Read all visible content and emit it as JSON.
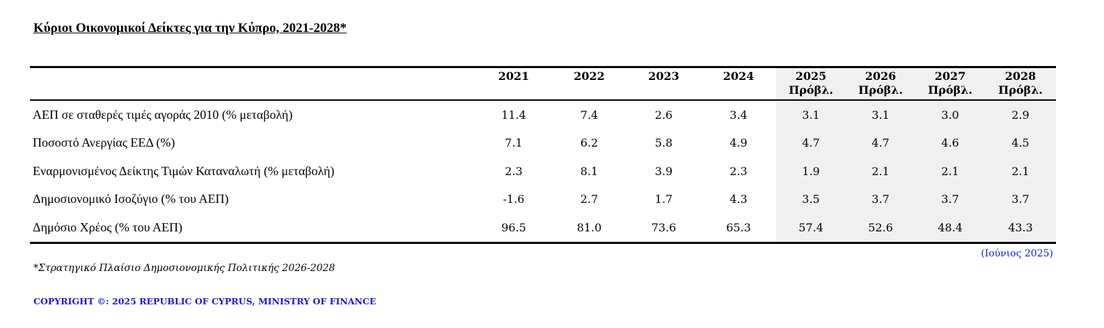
{
  "title": "Κύριοι Οικονομικοί Δείκτες για την Κύπρο, 2021-2028*",
  "columns": [
    {
      "year": "2021",
      "sub": ""
    },
    {
      "year": "2022",
      "sub": ""
    },
    {
      "year": "2023",
      "sub": ""
    },
    {
      "year": "2024",
      "sub": ""
    },
    {
      "year": "2025",
      "sub": "Πρόβλ."
    },
    {
      "year": "2026",
      "sub": "Πρόβλ."
    },
    {
      "year": "2027",
      "sub": "Πρόβλ."
    },
    {
      "year": "2028",
      "sub": "Πρόβλ."
    }
  ],
  "rows": [
    {
      "label": "ΑΕΠ σε σταθερές τιμές αγοράς 2010 (% μεταβολή)",
      "values": [
        "11.4",
        "7.4",
        "2.6",
        "3.4",
        "3.1",
        "3.1",
        "3.0",
        "2.9"
      ]
    },
    {
      "label": "Ποσοστό Ανεργίας ΕΕΔ (%)",
      "values": [
        "7.1",
        "6.2",
        "5.8",
        "4.9",
        "4.7",
        "4.7",
        "4.6",
        "4.5"
      ]
    },
    {
      "label": "Εναρμονισμένος Δείκτης Τιμών Καταναλωτή (% μεταβολή)",
      "values": [
        "2.3",
        "8.1",
        "3.9",
        "2.3",
        "1.9",
        "2.1",
        "2.1",
        "2.1"
      ]
    },
    {
      "label": "Δημοσιονομικό Ισοζύγιο (% του ΑΕΠ)",
      "values": [
        "-1.6",
        "2.7",
        "1.7",
        "4.3",
        "3.5",
        "3.7",
        "3.7",
        "3.7"
      ]
    },
    {
      "label": "Δημόσιο Χρέος (% του ΑΕΠ)",
      "values": [
        "96.5",
        "81.0",
        "73.6",
        "65.3",
        "57.4",
        "52.6",
        "48.4",
        "43.3"
      ]
    }
  ],
  "date_note": "(Ιούνιος 2025)",
  "footnote": "*Στρατηγικό Πλαίσιο Δημοσιονομικής Πολιτικής 2026-2028",
  "copyright": "COPYRIGHT ©: 2025 REPUBLIC OF CYPRUS, MINISTRY OF FINANCE",
  "colors": {
    "forecast_bg": "#f0f0f0",
    "link_blue": "#1a1adc"
  }
}
